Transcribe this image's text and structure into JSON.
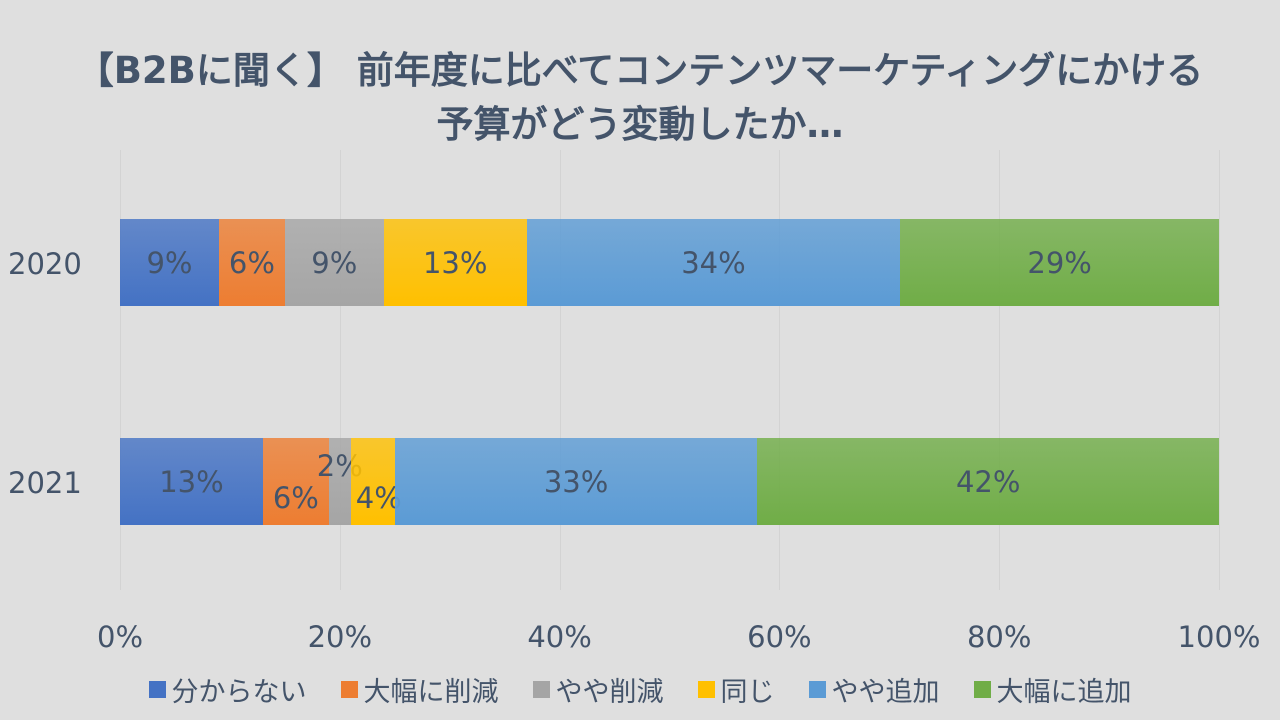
{
  "chart_data": {
    "type": "bar",
    "orientation": "horizontal",
    "stacked": "percent",
    "title_lines": [
      "【B2Bに聞く】 前年度に比べてコンテンツマーケティングにかける",
      "予算がどう変動したか…"
    ],
    "categories": [
      "2020",
      "2021"
    ],
    "series": [
      {
        "name": "分からない",
        "color": "#4472C4",
        "values": [
          9,
          13
        ]
      },
      {
        "name": "大幅に削減",
        "color": "#ED7D31",
        "values": [
          6,
          6
        ]
      },
      {
        "name": "やや削減",
        "color": "#A5A5A5",
        "values": [
          9,
          2
        ]
      },
      {
        "name": "同じ",
        "color": "#FFC000",
        "values": [
          13,
          4
        ]
      },
      {
        "name": "やや追加",
        "color": "#5B9BD5",
        "values": [
          34,
          33
        ]
      },
      {
        "name": "大幅に追加",
        "color": "#70AD47",
        "values": [
          29,
          42
        ]
      }
    ],
    "value_format": "%",
    "xlim": [
      0,
      100
    ],
    "x_ticks": [
      "0%",
      "20%",
      "40%",
      "60%",
      "80%",
      "100%"
    ],
    "grid": "vertical",
    "legend": "bottom"
  }
}
